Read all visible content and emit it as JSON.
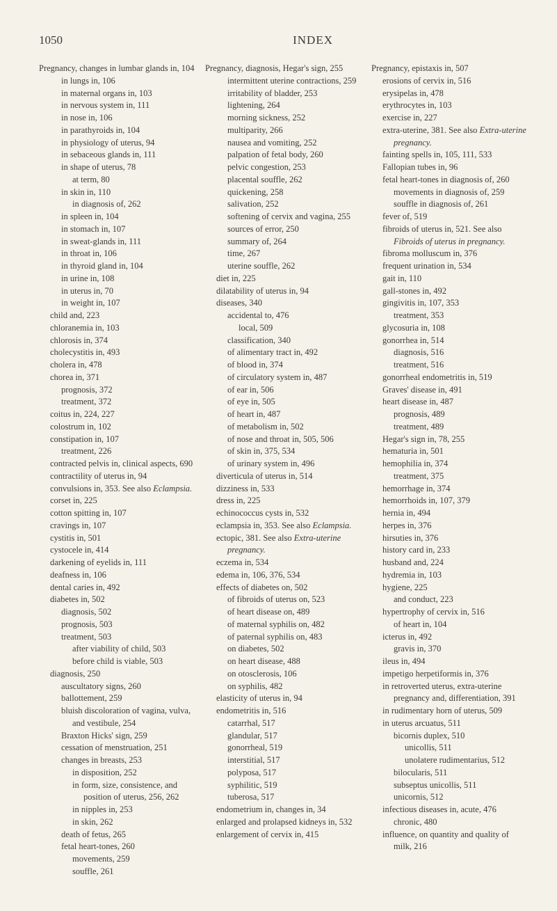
{
  "header": {
    "page_number": "1050",
    "title": "INDEX"
  },
  "columns": [
    {
      "entries": [
        {
          "l": 0,
          "t": "Pregnancy, changes in lumbar glands in, 104"
        },
        {
          "l": 2,
          "t": "in lungs in, 106"
        },
        {
          "l": 2,
          "t": "in maternal organs in, 103"
        },
        {
          "l": 2,
          "t": "in nervous system in, 111"
        },
        {
          "l": 2,
          "t": "in nose in, 106"
        },
        {
          "l": 2,
          "t": "in parathyroids in, 104"
        },
        {
          "l": 2,
          "t": "in physiology of uterus, 94"
        },
        {
          "l": 2,
          "t": "in sebaceous glands in, 111"
        },
        {
          "l": 2,
          "t": "in shape of uterus, 78"
        },
        {
          "l": 3,
          "t": "at term, 80"
        },
        {
          "l": 2,
          "t": "in skin in, 110"
        },
        {
          "l": 3,
          "t": "in diagnosis of, 262"
        },
        {
          "l": 2,
          "t": "in spleen in, 104"
        },
        {
          "l": 2,
          "t": "in stomach in, 107"
        },
        {
          "l": 2,
          "t": "in sweat-glands in, 111"
        },
        {
          "l": 2,
          "t": "in throat in, 106"
        },
        {
          "l": 2,
          "t": "in thyroid gland in, 104"
        },
        {
          "l": 2,
          "t": "in urine in, 108"
        },
        {
          "l": 2,
          "t": "in uterus in, 70"
        },
        {
          "l": 2,
          "t": "in weight in, 107"
        },
        {
          "l": 1,
          "t": "child and, 223"
        },
        {
          "l": 1,
          "t": "chloranemia in, 103"
        },
        {
          "l": 1,
          "t": "chlorosis in, 374"
        },
        {
          "l": 1,
          "t": "cholecystitis in, 493"
        },
        {
          "l": 1,
          "t": "cholera in, 478"
        },
        {
          "l": 1,
          "t": "chorea in, 371"
        },
        {
          "l": 2,
          "t": "prognosis, 372"
        },
        {
          "l": 2,
          "t": "treatment, 372"
        },
        {
          "l": 1,
          "t": "coitus in, 224, 227"
        },
        {
          "l": 1,
          "t": "colostrum in, 102"
        },
        {
          "l": 1,
          "t": "constipation in, 107"
        },
        {
          "l": 2,
          "t": "treatment, 226"
        },
        {
          "l": 1,
          "t": "contracted pelvis in, clinical aspects, 690"
        },
        {
          "l": 1,
          "t": "contractility of uterus in, 94"
        },
        {
          "l": 1,
          "t": "convulsions in, 353. See also ",
          "tail_italic": "Eclampsia."
        },
        {
          "l": 1,
          "t": "corset in, 225"
        },
        {
          "l": 1,
          "t": "cotton spitting in, 107"
        },
        {
          "l": 1,
          "t": "cravings in, 107"
        },
        {
          "l": 1,
          "t": "cystitis in, 501"
        },
        {
          "l": 1,
          "t": "cystocele in, 414"
        },
        {
          "l": 1,
          "t": "darkening of eyelids in, 111"
        },
        {
          "l": 1,
          "t": "deafness in, 106"
        },
        {
          "l": 1,
          "t": "dental caries in, 492"
        },
        {
          "l": 1,
          "t": "diabetes in, 502"
        },
        {
          "l": 2,
          "t": "diagnosis, 502"
        },
        {
          "l": 2,
          "t": "prognosis, 503"
        },
        {
          "l": 2,
          "t": "treatment, 503"
        },
        {
          "l": 3,
          "t": "after viability of child, 503"
        },
        {
          "l": 3,
          "t": "before child is viable, 503"
        },
        {
          "l": 1,
          "t": "diagnosis, 250"
        },
        {
          "l": 2,
          "t": "auscultatory signs, 260"
        },
        {
          "l": 2,
          "t": "ballottement, 259"
        },
        {
          "l": 2,
          "t": "bluish discoloration of vagina, vulva, and vestibule, 254"
        },
        {
          "l": 2,
          "t": "Braxton Hicks' sign, 259"
        },
        {
          "l": 2,
          "t": "cessation of menstruation, 251"
        },
        {
          "l": 2,
          "t": "changes in breasts, 253"
        },
        {
          "l": 3,
          "t": "in disposition, 252"
        },
        {
          "l": 3,
          "t": "in form, size, consistence, and position of uterus, 256, 262"
        },
        {
          "l": 3,
          "t": "in nipples in, 253"
        },
        {
          "l": 3,
          "t": "in skin, 262"
        },
        {
          "l": 2,
          "t": "death of fetus, 265"
        },
        {
          "l": 2,
          "t": "fetal heart-tones, 260"
        },
        {
          "l": 3,
          "t": "movements, 259"
        },
        {
          "l": 3,
          "t": "souffle, 261"
        }
      ]
    },
    {
      "entries": [
        {
          "l": 0,
          "t": "Pregnancy, diagnosis, Hegar's sign, 255"
        },
        {
          "l": 2,
          "t": "intermittent uterine contractions, 259"
        },
        {
          "l": 2,
          "t": "irritability of bladder, 253"
        },
        {
          "l": 2,
          "t": "lightening, 264"
        },
        {
          "l": 2,
          "t": "morning sickness, 252"
        },
        {
          "l": 2,
          "t": "multiparity, 266"
        },
        {
          "l": 2,
          "t": "nausea and vomiting, 252"
        },
        {
          "l": 2,
          "t": "palpation of fetal body, 260"
        },
        {
          "l": 2,
          "t": "pelvic congestion, 253"
        },
        {
          "l": 2,
          "t": "placental souffle, 262"
        },
        {
          "l": 2,
          "t": "quickening, 258"
        },
        {
          "l": 2,
          "t": "salivation, 252"
        },
        {
          "l": 2,
          "t": "softening of cervix and vagina, 255"
        },
        {
          "l": 2,
          "t": "sources of error, 250"
        },
        {
          "l": 2,
          "t": "summary of, 264"
        },
        {
          "l": 2,
          "t": "time, 267"
        },
        {
          "l": 2,
          "t": "uterine souffle, 262"
        },
        {
          "l": 1,
          "t": "diet in, 225"
        },
        {
          "l": 1,
          "t": "dilatability of uterus in, 94"
        },
        {
          "l": 1,
          "t": "diseases, 340"
        },
        {
          "l": 2,
          "t": "accidental to, 476"
        },
        {
          "l": 3,
          "t": "local, 509"
        },
        {
          "l": 2,
          "t": "classification, 340"
        },
        {
          "l": 2,
          "t": "of alimentary tract in, 492"
        },
        {
          "l": 2,
          "t": "of blood in, 374"
        },
        {
          "l": 2,
          "t": "of circulatory system in, 487"
        },
        {
          "l": 2,
          "t": "of ear in, 506"
        },
        {
          "l": 2,
          "t": "of eye in, 505"
        },
        {
          "l": 2,
          "t": "of heart in, 487"
        },
        {
          "l": 2,
          "t": "of metabolism in, 502"
        },
        {
          "l": 2,
          "t": "of nose and throat in, 505, 506"
        },
        {
          "l": 2,
          "t": "of skin in, 375, 534"
        },
        {
          "l": 2,
          "t": "of urinary system in, 496"
        },
        {
          "l": 1,
          "t": "diverticula of uterus in, 514"
        },
        {
          "l": 1,
          "t": "dizziness in, 533"
        },
        {
          "l": 1,
          "t": "dress in, 225"
        },
        {
          "l": 1,
          "t": "echinococcus cysts in, 532"
        },
        {
          "l": 1,
          "t": "eclampsia in, 353. See also ",
          "tail_italic": "Eclampsia."
        },
        {
          "l": 1,
          "t": "ectopic, 381. See also ",
          "tail_italic": "Extra-uterine pregnancy."
        },
        {
          "l": 1,
          "t": "eczema in, 534"
        },
        {
          "l": 1,
          "t": "edema in, 106, 376, 534"
        },
        {
          "l": 1,
          "t": "effects of diabetes on, 502"
        },
        {
          "l": 2,
          "t": "of fibroids of uterus on, 523"
        },
        {
          "l": 2,
          "t": "of heart disease on, 489"
        },
        {
          "l": 2,
          "t": "of maternal syphilis on, 482"
        },
        {
          "l": 2,
          "t": "of paternal syphilis on, 483"
        },
        {
          "l": 2,
          "t": "on diabetes, 502"
        },
        {
          "l": 2,
          "t": "on heart disease, 488"
        },
        {
          "l": 2,
          "t": "on otosclerosis, 106"
        },
        {
          "l": 2,
          "t": "on syphilis, 482"
        },
        {
          "l": 1,
          "t": "elasticity of uterus in, 94"
        },
        {
          "l": 1,
          "t": "endometritis in, 516"
        },
        {
          "l": 2,
          "t": "catarrhal, 517"
        },
        {
          "l": 2,
          "t": "glandular, 517"
        },
        {
          "l": 2,
          "t": "gonorrheal, 519"
        },
        {
          "l": 2,
          "t": "interstitial, 517"
        },
        {
          "l": 2,
          "t": "polyposa, 517"
        },
        {
          "l": 2,
          "t": "syphilitic, 519"
        },
        {
          "l": 2,
          "t": "tuberosa, 517"
        },
        {
          "l": 1,
          "t": "endometrium in, changes in, 34"
        },
        {
          "l": 1,
          "t": "enlarged and prolapsed kidneys in, 532"
        },
        {
          "l": 1,
          "t": "enlargement of cervix in, 415"
        }
      ]
    },
    {
      "entries": [
        {
          "l": 0,
          "t": "Pregnancy, epistaxis in, 507"
        },
        {
          "l": 1,
          "t": "erosions of cervix in, 516"
        },
        {
          "l": 1,
          "t": "erysipelas in, 478"
        },
        {
          "l": 1,
          "t": "erythrocytes in, 103"
        },
        {
          "l": 1,
          "t": "exercise in, 227"
        },
        {
          "l": 1,
          "t": "extra-uterine, 381. See also ",
          "tail_italic": "Extra-uterine pregnancy."
        },
        {
          "l": 1,
          "t": "fainting spells in, 105, 111, 533"
        },
        {
          "l": 1,
          "t": "Fallopian tubes in, 96"
        },
        {
          "l": 1,
          "t": "fetal heart-tones in diagnosis of, 260"
        },
        {
          "l": 2,
          "t": "movements in diagnosis of, 259"
        },
        {
          "l": 2,
          "t": "souffle in diagnosis of, 261"
        },
        {
          "l": 1,
          "t": "fever of, 519"
        },
        {
          "l": 1,
          "t": "fibroids of uterus in, 521. See also ",
          "tail_italic": "Fibroids of uterus in pregnancy."
        },
        {
          "l": 1,
          "t": "fibroma molluscum in, 376"
        },
        {
          "l": 1,
          "t": "frequent urination in, 534"
        },
        {
          "l": 1,
          "t": "gait in, 110"
        },
        {
          "l": 1,
          "t": "gall-stones in, 492"
        },
        {
          "l": 1,
          "t": "gingivitis in, 107, 353"
        },
        {
          "l": 2,
          "t": "treatment, 353"
        },
        {
          "l": 1,
          "t": "glycosuria in, 108"
        },
        {
          "l": 1,
          "t": "gonorrhea in, 514"
        },
        {
          "l": 2,
          "t": "diagnosis, 516"
        },
        {
          "l": 2,
          "t": "treatment, 516"
        },
        {
          "l": 1,
          "t": "gonorrheal endometritis in, 519"
        },
        {
          "l": 1,
          "t": "Graves' disease in, 491"
        },
        {
          "l": 1,
          "t": "heart disease in, 487"
        },
        {
          "l": 2,
          "t": "prognosis, 489"
        },
        {
          "l": 2,
          "t": "treatment, 489"
        },
        {
          "l": 1,
          "t": "Hegar's sign in, 78, 255"
        },
        {
          "l": 1,
          "t": "hematuria in, 501"
        },
        {
          "l": 1,
          "t": "hemophilia in, 374"
        },
        {
          "l": 2,
          "t": "treatment, 375"
        },
        {
          "l": 1,
          "t": "hemorrhage in, 374"
        },
        {
          "l": 1,
          "t": "hemorrhoids in, 107, 379"
        },
        {
          "l": 1,
          "t": "hernia in, 494"
        },
        {
          "l": 1,
          "t": "herpes in, 376"
        },
        {
          "l": 1,
          "t": "hirsuties in, 376"
        },
        {
          "l": 1,
          "t": "history card in, 233"
        },
        {
          "l": 1,
          "t": "husband and, 224"
        },
        {
          "l": 1,
          "t": "hydremia in, 103"
        },
        {
          "l": 1,
          "t": "hygiene, 225"
        },
        {
          "l": 2,
          "t": "and conduct, 223"
        },
        {
          "l": 1,
          "t": "hypertrophy of cervix in, 516"
        },
        {
          "l": 2,
          "t": "of heart in, 104"
        },
        {
          "l": 1,
          "t": "icterus in, 492"
        },
        {
          "l": 2,
          "t": "gravis in, 370"
        },
        {
          "l": 1,
          "t": "ileus in, 494"
        },
        {
          "l": 1,
          "t": "impetigo herpetiformis in, 376"
        },
        {
          "l": 1,
          "t": "in retroverted uterus, extra-uterine pregnancy and, differentiation, 391"
        },
        {
          "l": 1,
          "t": "in rudimentary horn of uterus, 509"
        },
        {
          "l": 1,
          "t": "in uterus arcuatus, 511"
        },
        {
          "l": 2,
          "t": "bicornis duplex, 510"
        },
        {
          "l": 3,
          "t": "unicollis, 511"
        },
        {
          "l": 3,
          "t": "unolatere rudimentarius, 512"
        },
        {
          "l": 2,
          "t": "bilocularis, 511"
        },
        {
          "l": 2,
          "t": "subseptus unicollis, 511"
        },
        {
          "l": 2,
          "t": "unicornis, 512"
        },
        {
          "l": 1,
          "t": "infectious diseases in, acute, 476"
        },
        {
          "l": 2,
          "t": "chronic, 480"
        },
        {
          "l": 1,
          "t": "influence, on quantity and quality of milk, 216"
        }
      ]
    }
  ]
}
